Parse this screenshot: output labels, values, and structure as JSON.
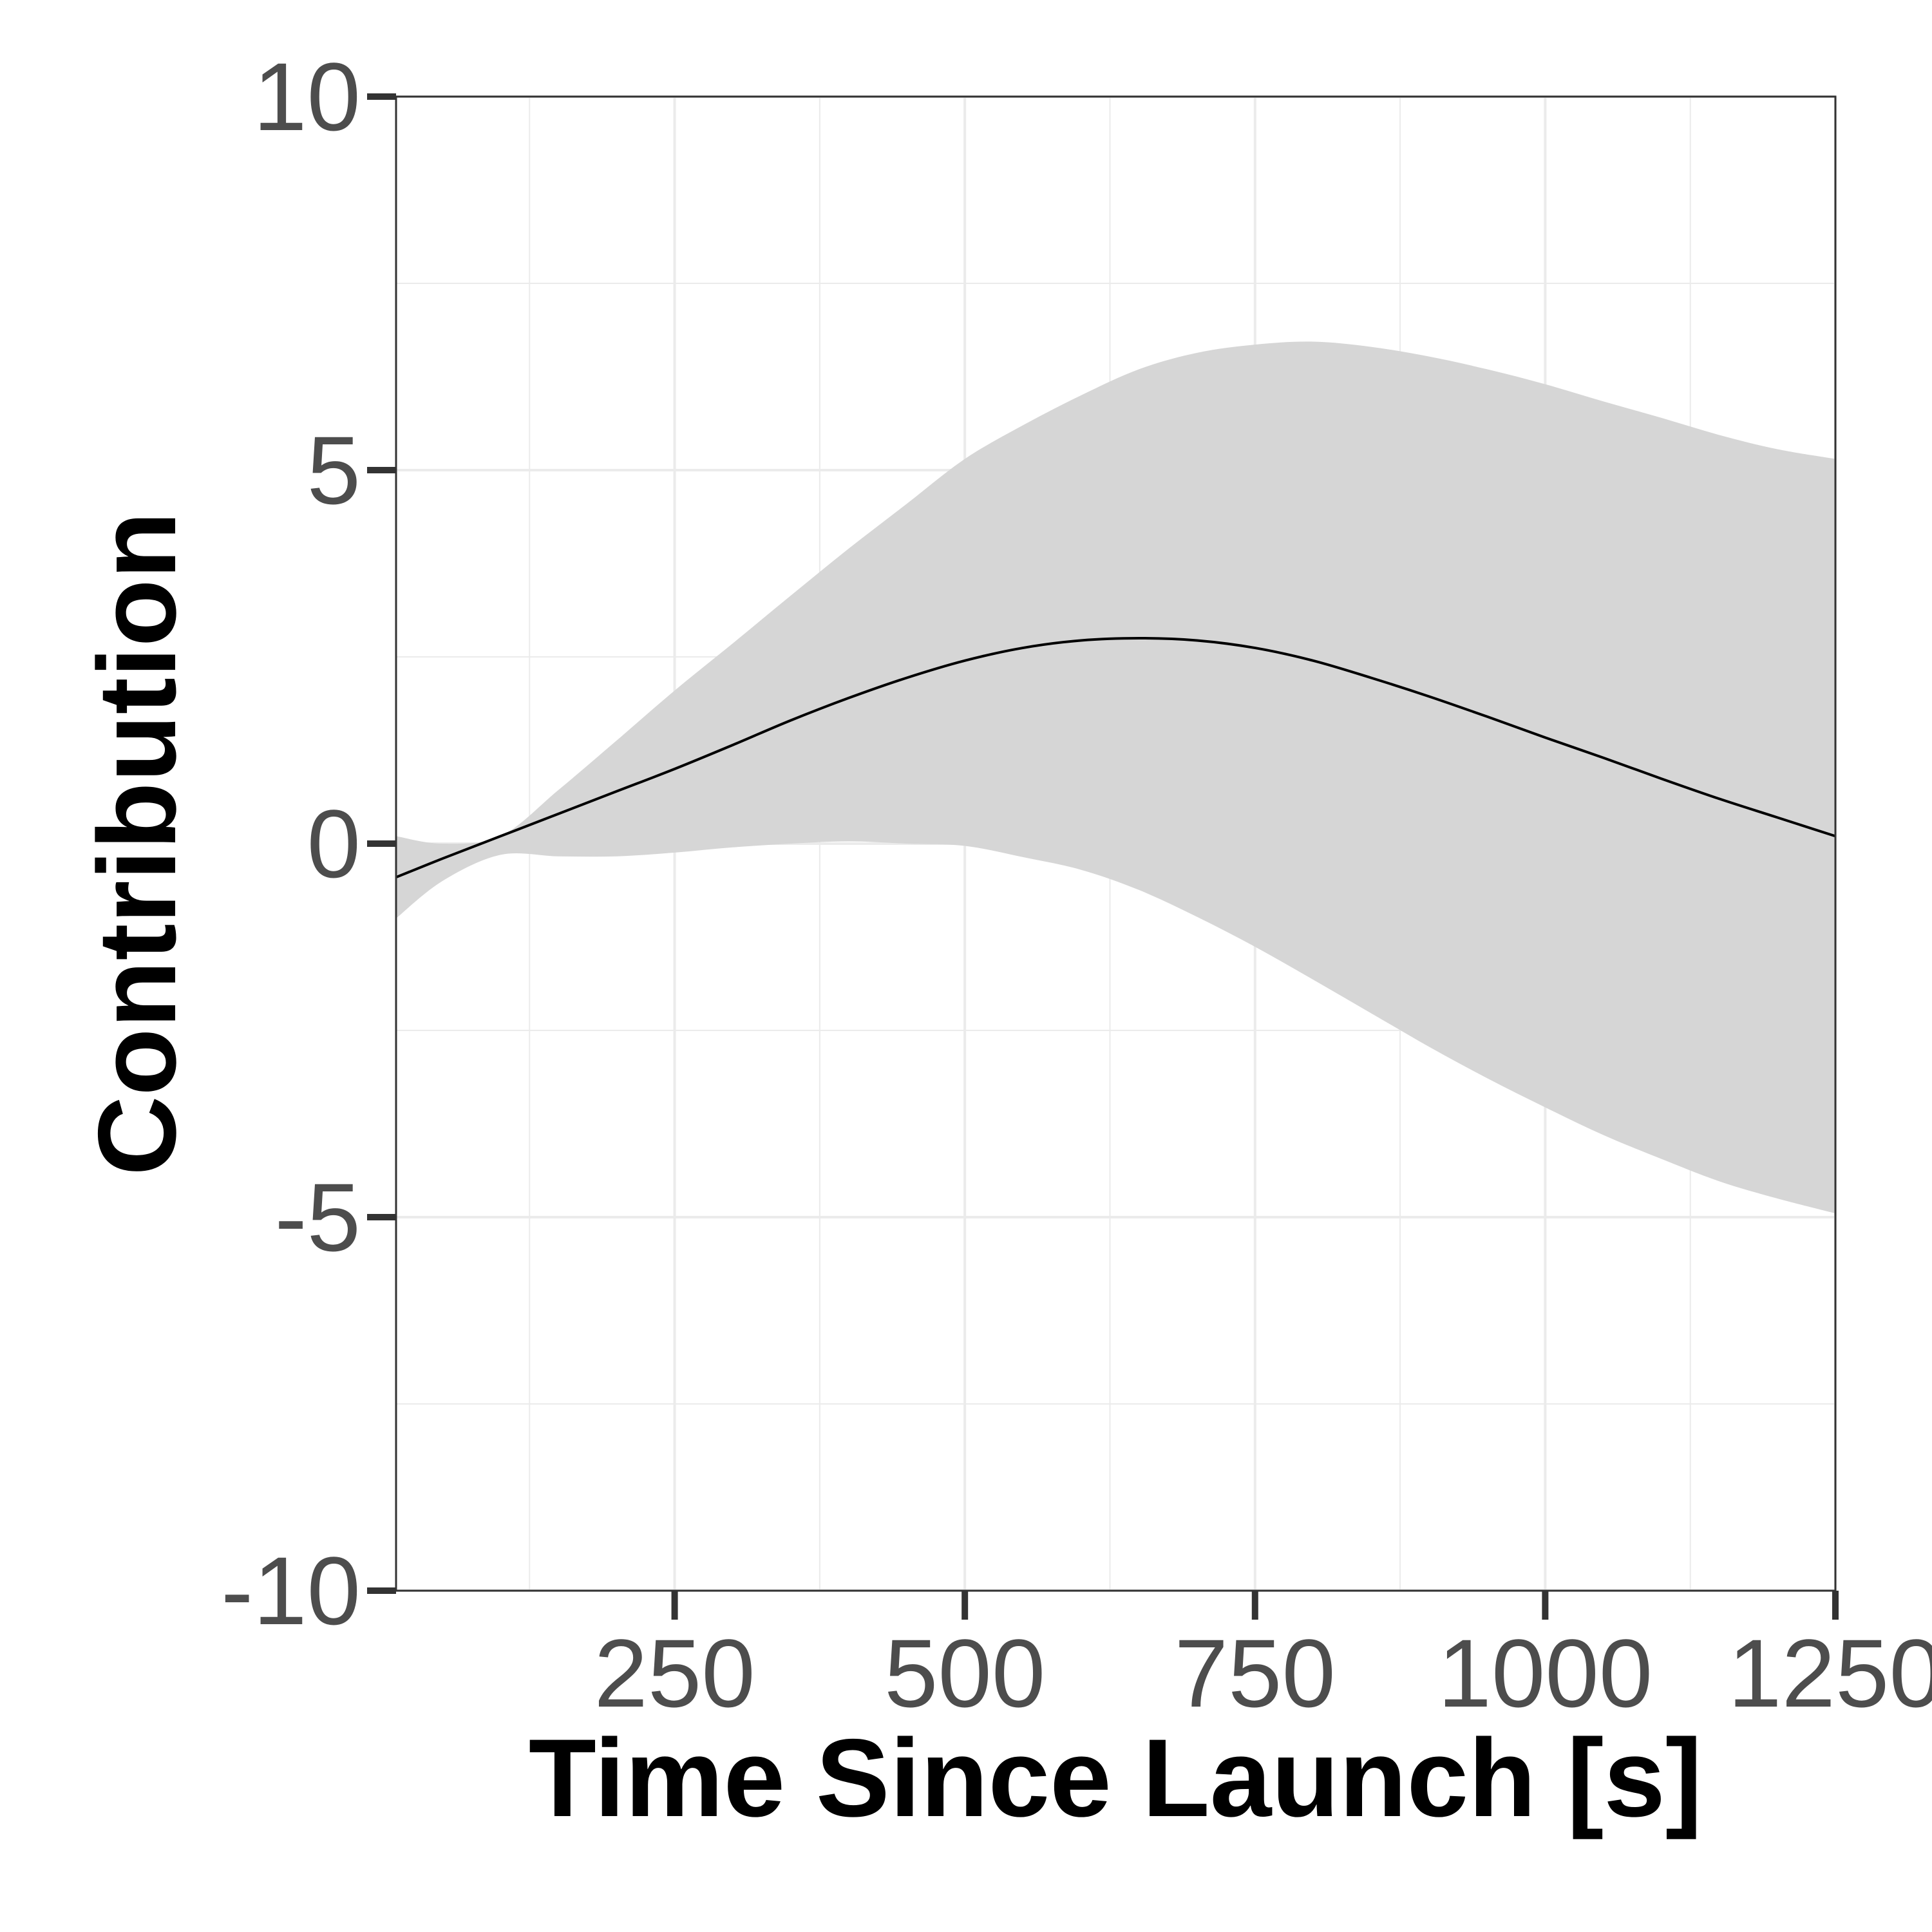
{
  "chart_data": {
    "type": "line",
    "title": "",
    "xlabel": "Time Since Launch [s]",
    "ylabel": "Contribution",
    "xlim": [
      10,
      1250
    ],
    "ylim": [
      -10,
      10
    ],
    "x_ticks": [
      250,
      500,
      750,
      1000,
      1250
    ],
    "x_tick_labels": [
      "250",
      "500",
      "750",
      "1000",
      "1250"
    ],
    "y_ticks": [
      -10,
      -5,
      0,
      5,
      10
    ],
    "y_tick_labels": [
      "-10",
      "-5",
      "0",
      "5",
      "10"
    ],
    "x_minor_ticks": [
      125,
      375,
      625,
      875,
      1125
    ],
    "y_minor_ticks": [
      -7.5,
      -2.5,
      2.5,
      7.5
    ],
    "grid": true,
    "colors": {
      "line": "#000000",
      "ribbon": "#d6d6d6",
      "grid": "#ebebeb",
      "panel_border": "#333333"
    },
    "series": [
      {
        "x": [
          10,
          50,
          100,
          150,
          200,
          250,
          300,
          350,
          400,
          450,
          500,
          550,
          600,
          650,
          700,
          750,
          800,
          850,
          900,
          950,
          1000,
          1050,
          1100,
          1150,
          1200,
          1250
        ],
        "y": [
          -0.45,
          -0.2,
          0.1,
          0.4,
          0.7,
          1.0,
          1.32,
          1.65,
          1.95,
          2.22,
          2.45,
          2.62,
          2.72,
          2.75,
          2.72,
          2.62,
          2.45,
          2.22,
          1.97,
          1.7,
          1.42,
          1.15,
          0.87,
          0.6,
          0.35,
          0.1
        ],
        "lower": [
          -1.0,
          -0.5,
          -0.15,
          -0.17,
          -0.17,
          -0.12,
          -0.05,
          0.0,
          0.03,
          0.0,
          -0.03,
          -0.18,
          -0.35,
          -0.62,
          -0.98,
          -1.38,
          -1.82,
          -2.27,
          -2.72,
          -3.14,
          -3.53,
          -3.9,
          -4.22,
          -4.52,
          -4.75,
          -4.95
        ],
        "upper": [
          0.1,
          0.0,
          0.1,
          0.72,
          1.38,
          2.05,
          2.68,
          3.32,
          3.95,
          4.55,
          5.15,
          5.6,
          6.0,
          6.35,
          6.57,
          6.68,
          6.72,
          6.65,
          6.52,
          6.35,
          6.15,
          5.92,
          5.7,
          5.47,
          5.28,
          5.15
        ]
      }
    ]
  }
}
